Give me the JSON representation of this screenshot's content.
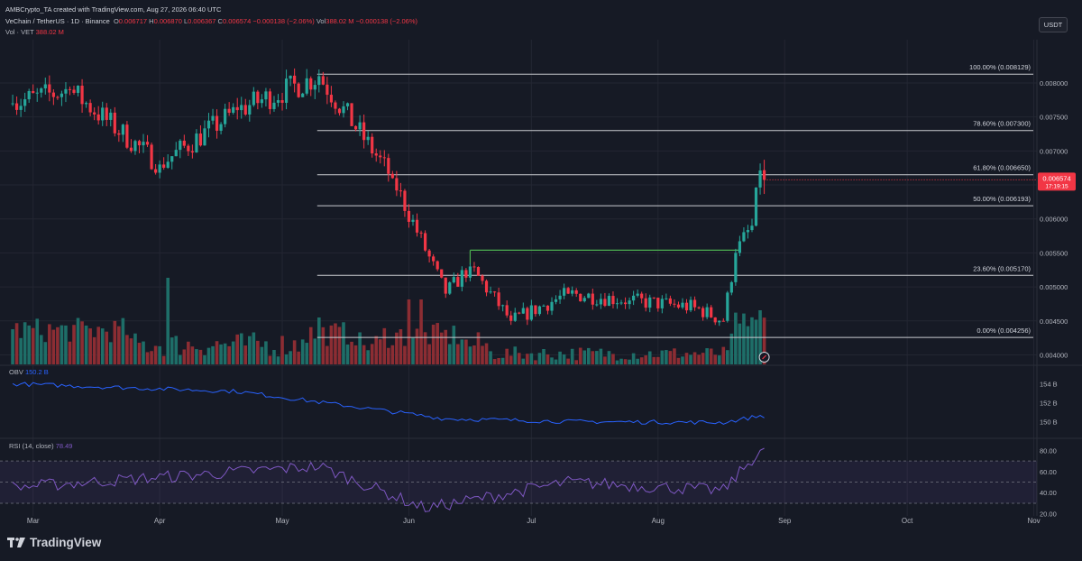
{
  "header": {
    "creator": "AMBCrypto_TA created with TradingView.com, Aug 27, 2026 06:40 UTC",
    "symbol": "VeChain / TetherUS · 1D · Binance",
    "ohlc": {
      "o_label": "O",
      "o": "0.006717",
      "h_label": "H",
      "h": "0.006870",
      "l_label": "L",
      "l": "0.006367",
      "c_label": "C",
      "c": "0.006574",
      "chg": "−0.000138 (−2.06%)"
    },
    "vol_inline_label": "Vol",
    "vol_inline": "388.02 M −0.000138 (−2.06%)",
    "vol_label": "Vol · VET",
    "vol_value": "388.02 M"
  },
  "currency_badge": "USDT",
  "last_price": {
    "price": "0.006574",
    "countdown": "17:19:15"
  },
  "brand": "TradingView",
  "colors": {
    "bg": "#161a25",
    "grid": "#232632",
    "up": "#26a69a",
    "down": "#f23645",
    "vol_up": "#1e6e68",
    "vol_down": "#8c2d33",
    "fib": "#c9cbd0",
    "obv": "#2962ff",
    "rsi": "#7e57c2",
    "resistance": "#4caf50"
  },
  "chart_data": {
    "type": "candlestick",
    "title": "VeChain / TetherUS · 1D · Binance",
    "x_ticks": [
      "Mar",
      "Apr",
      "May",
      "Jun",
      "Jul",
      "Aug",
      "Sep",
      "Oct",
      "Nov"
    ],
    "price_axis": {
      "ticks": [
        "0.008000",
        "0.007500",
        "0.007000",
        "0.006500",
        "0.006000",
        "0.005500",
        "0.005000",
        "0.004500",
        "0.004000"
      ],
      "range": [
        0.00386,
        0.00853
      ]
    },
    "fibonacci": [
      {
        "label": "100.00% (0.008129)",
        "value": 0.008129
      },
      {
        "label": "78.60% (0.007300)",
        "value": 0.0073
      },
      {
        "label": "61.80% (0.006650)",
        "value": 0.00665
      },
      {
        "label": "50.00% (0.006193)",
        "value": 0.006193
      },
      {
        "label": "23.60% (0.005170)",
        "value": 0.00517
      },
      {
        "label": "0.00% (0.004256)",
        "value": 0.004256
      }
    ],
    "resistance_line": {
      "value": 0.00554,
      "from": "2025-06-16",
      "to": "2025-08-21"
    },
    "key_closes": [
      {
        "date": "2025-02-24",
        "close": 0.0077
      },
      {
        "date": "2025-03-10",
        "close": 0.0079
      },
      {
        "date": "2025-04-01",
        "close": 0.0068
      },
      {
        "date": "2025-04-20",
        "close": 0.0076
      },
      {
        "date": "2025-05-10",
        "close": 0.0081
      },
      {
        "date": "2025-05-28",
        "close": 0.0066
      },
      {
        "date": "2025-06-10",
        "close": 0.0049
      },
      {
        "date": "2025-06-16",
        "close": 0.0053
      },
      {
        "date": "2025-06-26",
        "close": 0.0045
      },
      {
        "date": "2025-07-10",
        "close": 0.0049
      },
      {
        "date": "2025-07-25",
        "close": 0.0048
      },
      {
        "date": "2025-08-10",
        "close": 0.0047
      },
      {
        "date": "2025-08-17",
        "close": 0.0045
      },
      {
        "date": "2025-08-20",
        "close": 0.0055
      },
      {
        "date": "2025-08-24",
        "close": 0.0059
      },
      {
        "date": "2025-08-26",
        "close": 0.006712
      },
      {
        "date": "2025-08-27",
        "close": 0.006574
      }
    ],
    "volume": {
      "label": "Vol · VET",
      "last": "388.02 M"
    },
    "obv": {
      "label": "OBV",
      "value": "150.2 B",
      "ticks": [
        "154 B",
        "152 B",
        "150 B"
      ],
      "range": [
        "148.6 B",
        "155.3 B"
      ],
      "key_values": [
        {
          "date": "2025-02-24",
          "value": 154.0
        },
        {
          "date": "2025-04-20",
          "value": 153.2
        },
        {
          "date": "2025-06-10",
          "value": 150.3
        },
        {
          "date": "2025-07-10",
          "value": 150.0
        },
        {
          "date": "2025-08-17",
          "value": 149.9
        },
        {
          "date": "2025-08-26",
          "value": 150.6
        }
      ]
    },
    "rsi": {
      "label": "RSI (14, close)",
      "value": "78.49",
      "ticks": [
        "80.00",
        "60.00",
        "40.00",
        "20.00"
      ],
      "band": [
        30,
        70
      ],
      "key_values": [
        {
          "date": "2025-02-24",
          "value": 45
        },
        {
          "date": "2025-05-10",
          "value": 65
        },
        {
          "date": "2025-06-05",
          "value": 25
        },
        {
          "date": "2025-07-10",
          "value": 50
        },
        {
          "date": "2025-08-17",
          "value": 42
        },
        {
          "date": "2025-08-26",
          "value": 80
        }
      ]
    }
  }
}
